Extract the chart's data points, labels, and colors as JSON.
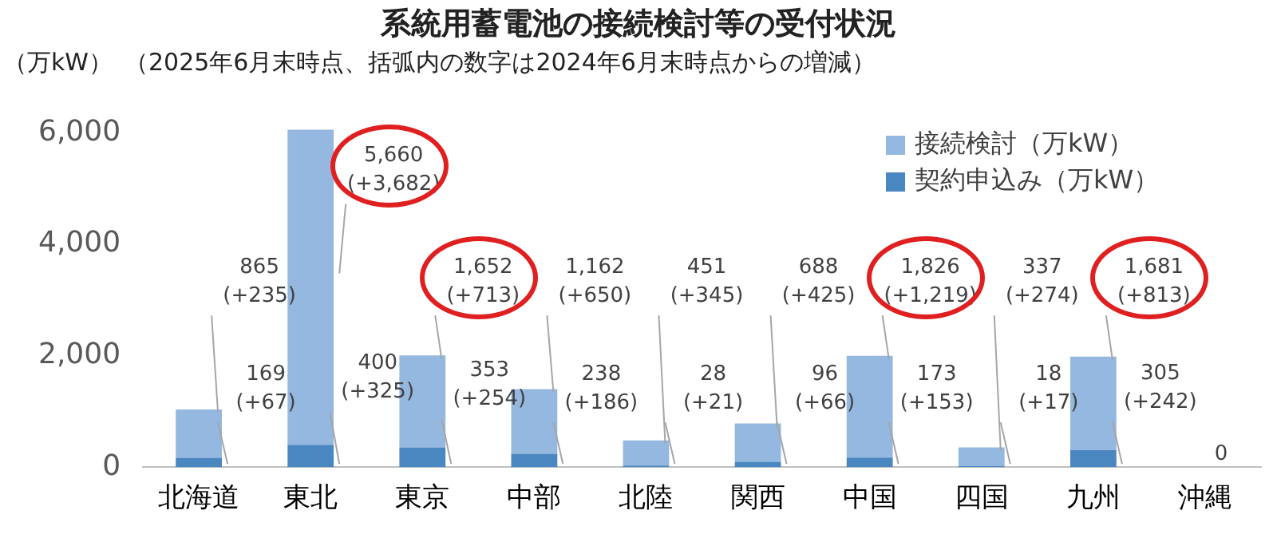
{
  "chart_data": {
    "type": "bar",
    "stacked": true,
    "title": "系統用蓄電池の接続検討等の受付状況",
    "subtitle": "（2025年6月末時点、括弧内の数字は2024年6月末時点からの増減）",
    "ylabel": "（万kW）",
    "categories": [
      "北海道",
      "東北",
      "東京",
      "中部",
      "北陸",
      "関西",
      "中国",
      "四国",
      "九州",
      "沖縄"
    ],
    "series": [
      {
        "name": "契約申込み（万kW）",
        "color": "#4a86c0",
        "values": [
          169,
          400,
          353,
          238,
          28,
          96,
          173,
          18,
          305,
          0
        ],
        "value_labels": [
          "169\n(+67)",
          "400\n(+325)",
          "353\n(+254)",
          "238\n(+186)",
          "28\n(+21)",
          "96\n(+66)",
          "173\n(+153)",
          "18\n(+17)",
          "305\n(+242)",
          null
        ]
      },
      {
        "name": "接続検討（万kW）",
        "color": "#95b8e0",
        "values": [
          865,
          5660,
          1652,
          1162,
          451,
          688,
          1826,
          337,
          1681,
          0
        ],
        "value_labels": [
          "865\n(+235)",
          "5,660\n(+3,682)",
          "1,652\n(+713)",
          "1,162\n(+650)",
          "451\n(+345)",
          "688\n(+425)",
          "1,826\n(+1,219)",
          "337\n(+274)",
          "1,681\n(+813)",
          "0"
        ]
      }
    ],
    "ylim": [
      0,
      6100
    ],
    "yticks": [
      {
        "value": 0,
        "label": "0"
      },
      {
        "value": 2000,
        "label": "2,000"
      },
      {
        "value": 4000,
        "label": "4,000"
      },
      {
        "value": 6000,
        "label": "6,000"
      }
    ],
    "grid": false,
    "legend": "top right"
  }
}
